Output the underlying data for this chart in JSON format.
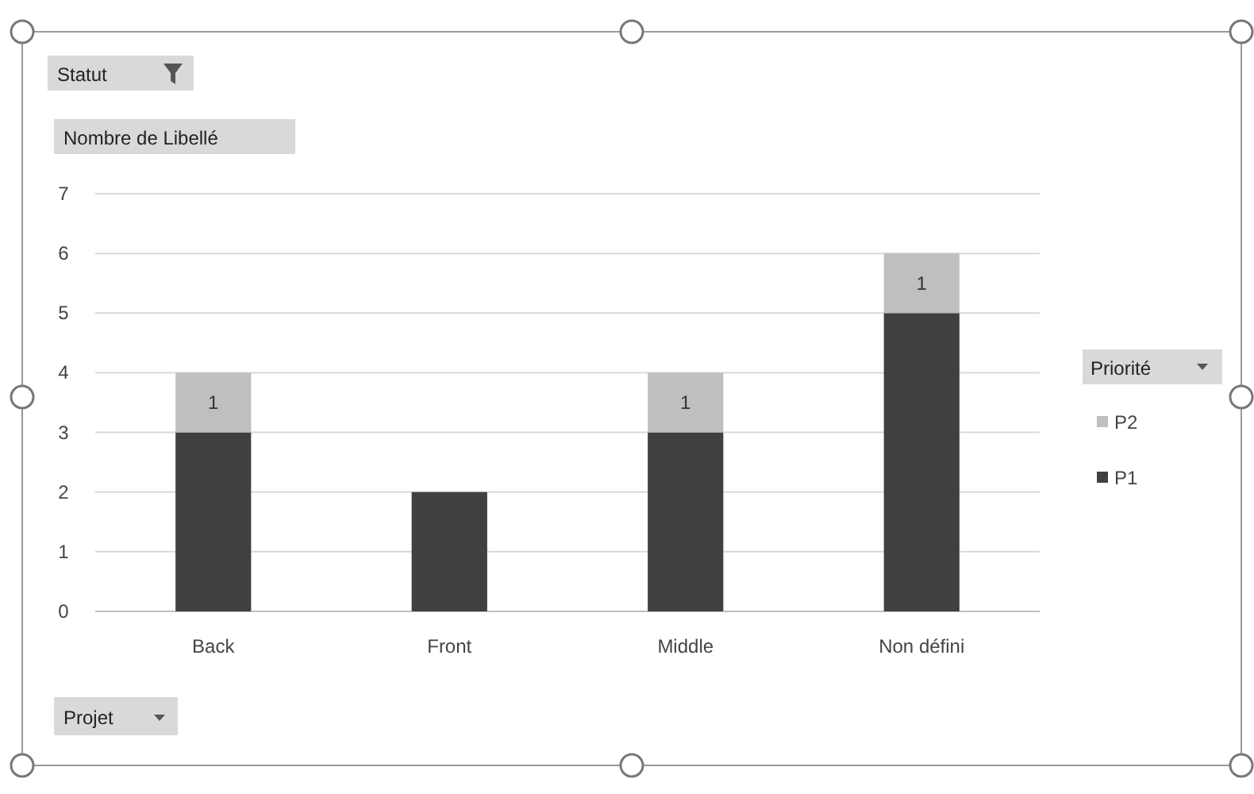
{
  "chart_data": {
    "type": "bar",
    "stacked": true,
    "annotations": [
      "Statut"
    ],
    "ylabel": "Nombre de Libellé",
    "xlabel": "Projet",
    "legend_title": "Priorité",
    "legend": "right",
    "categories": [
      "Back",
      "Front",
      "Middle",
      "Non défini"
    ],
    "series": [
      {
        "name": "P1",
        "color": "#404040",
        "values": [
          3,
          2,
          3,
          5
        ]
      },
      {
        "name": "P2",
        "color": "#bfbfbf",
        "values": [
          1,
          null,
          1,
          1
        ],
        "value_labels": [
          "1",
          null,
          "1",
          "1"
        ]
      }
    ],
    "ylim": [
      0,
      7
    ],
    "yticks": [
      0,
      1,
      2,
      3,
      4,
      5,
      6,
      7
    ],
    "grid": "y"
  }
}
